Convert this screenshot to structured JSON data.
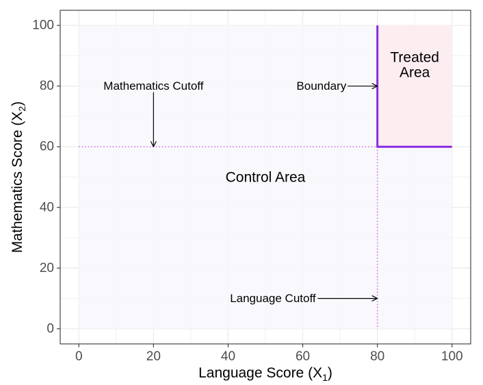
{
  "chart_data": {
    "type": "area",
    "xlabel": {
      "main": "Language Score (X",
      "sub": "1",
      "close": ")"
    },
    "ylabel": {
      "main": "Mathematics Score (X",
      "sub": "2",
      "close": ")"
    },
    "xlim": [
      -5,
      105
    ],
    "ylim": [
      -5,
      105
    ],
    "x_ticks": [
      0,
      20,
      40,
      60,
      80,
      100
    ],
    "y_ticks": [
      0,
      20,
      40,
      60,
      80,
      100
    ],
    "x_tick_labels": [
      "0",
      "20",
      "40",
      "60",
      "80",
      "100"
    ],
    "y_tick_labels": [
      "0",
      "20",
      "40",
      "60",
      "80",
      "100"
    ],
    "grid": true,
    "regions": [
      {
        "name": "control",
        "x": [
          0,
          100
        ],
        "y": [
          0,
          100
        ],
        "color": "#f8f7fd"
      },
      {
        "name": "treated",
        "x": [
          80,
          100
        ],
        "y": [
          60,
          100
        ],
        "color": "#fdebef"
      }
    ],
    "cutoffs": {
      "language": 80,
      "mathematics": 60
    },
    "boundary": {
      "points": [
        [
          80,
          100
        ],
        [
          80,
          60
        ],
        [
          100,
          60
        ]
      ],
      "color": "#8a2be2"
    },
    "annotations": [
      {
        "id": "math-cutoff",
        "label": "Mathematics Cutoff",
        "text_xy": [
          20,
          80
        ],
        "arrow_from": [
          20,
          78
        ],
        "arrow_to": [
          20,
          60
        ]
      },
      {
        "id": "boundary",
        "label": "Boundary",
        "text_xy": [
          65,
          80
        ],
        "arrow_from": [
          72,
          80
        ],
        "arrow_to": [
          80,
          80
        ]
      },
      {
        "id": "language-cutoff",
        "label": "Language Cutoff",
        "text_xy": [
          52,
          10
        ],
        "arrow_from": [
          64,
          10
        ],
        "arrow_to": [
          80,
          10
        ]
      }
    ],
    "region_labels": [
      {
        "id": "treated-area",
        "lines": [
          "Treated",
          "Area"
        ],
        "xy": [
          90,
          87
        ]
      },
      {
        "id": "control-area",
        "lines": [
          "Control Area"
        ],
        "xy": [
          50,
          50
        ]
      }
    ],
    "colors": {
      "panel_border": "#333333",
      "grid": "#ebebeb",
      "cutoff_line": "#c46bd8",
      "arrow": "#000000"
    }
  }
}
